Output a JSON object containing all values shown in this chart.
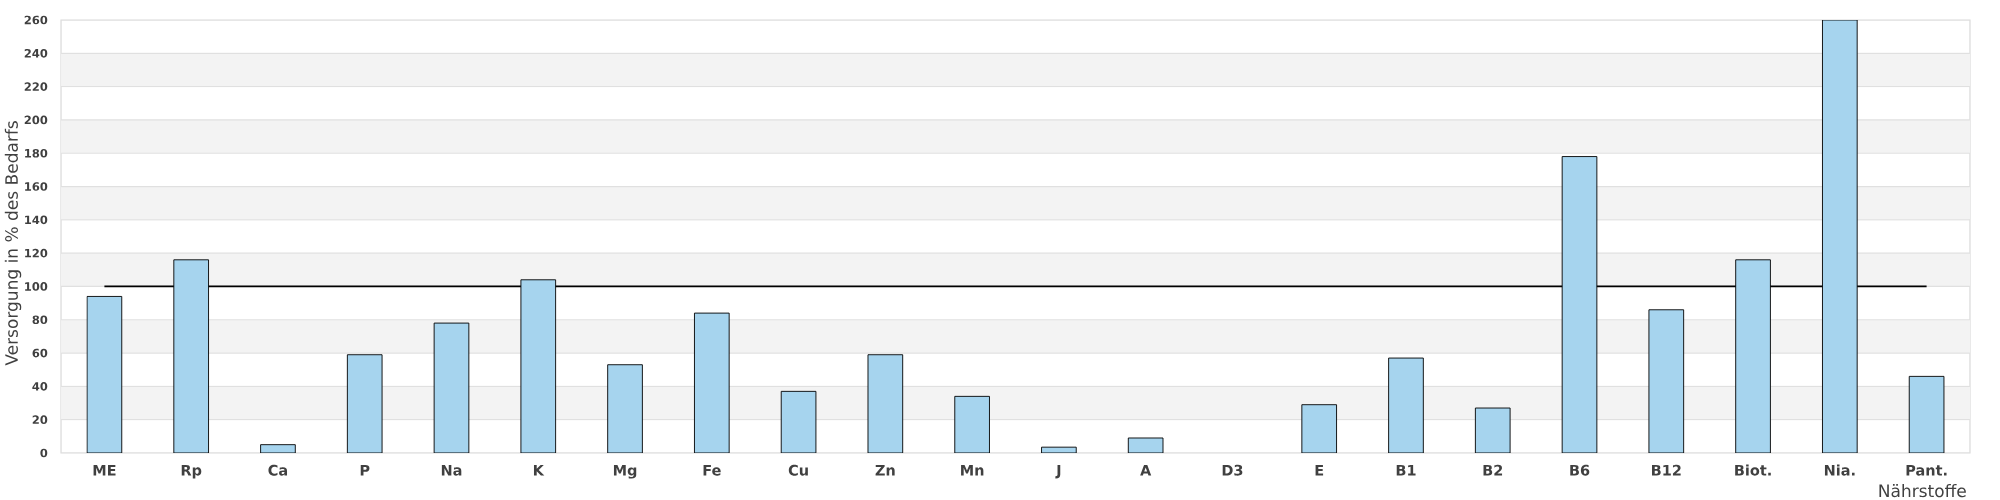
{
  "chart_data": {
    "type": "bar",
    "xlabel": "Nährstoffe",
    "ylabel": "Versorgung in % des Bedarfs",
    "categories": [
      "ME",
      "Rp",
      "Ca",
      "P",
      "Na",
      "K",
      "Mg",
      "Fe",
      "Cu",
      "Zn",
      "Mn",
      "J",
      "A",
      "D3",
      "E",
      "B1",
      "B2",
      "B6",
      "B12",
      "Biot.",
      "Nia.",
      "Pant."
    ],
    "values": [
      94,
      116,
      5,
      59,
      78,
      104,
      53,
      84,
      37,
      59,
      34,
      3.5,
      9,
      null,
      29,
      57,
      27,
      178,
      86,
      116,
      260,
      46
    ],
    "color": "#a6d4ee",
    "ylim": [
      0,
      260
    ],
    "yticks": [
      0,
      20,
      40,
      60,
      80,
      100,
      120,
      140,
      160,
      180,
      200,
      220,
      240,
      260
    ],
    "grid": "y",
    "ref_lines": [
      {
        "axis": "y",
        "value": 100,
        "color": "#000000"
      }
    ],
    "bands": [
      {
        "axis": "y",
        "from": 20,
        "to": 40,
        "color": "#f3f3f3"
      },
      {
        "axis": "y",
        "from": 60,
        "to": 80,
        "color": "#f3f3f3"
      },
      {
        "axis": "y",
        "from": 100,
        "to": 120,
        "color": "#f3f3f3"
      },
      {
        "axis": "y",
        "from": 140,
        "to": 160,
        "color": "#f3f3f3"
      },
      {
        "axis": "y",
        "from": 180,
        "to": 200,
        "color": "#f3f3f3"
      },
      {
        "axis": "y",
        "from": 220,
        "to": 240,
        "color": "#f3f3f3"
      }
    ]
  }
}
